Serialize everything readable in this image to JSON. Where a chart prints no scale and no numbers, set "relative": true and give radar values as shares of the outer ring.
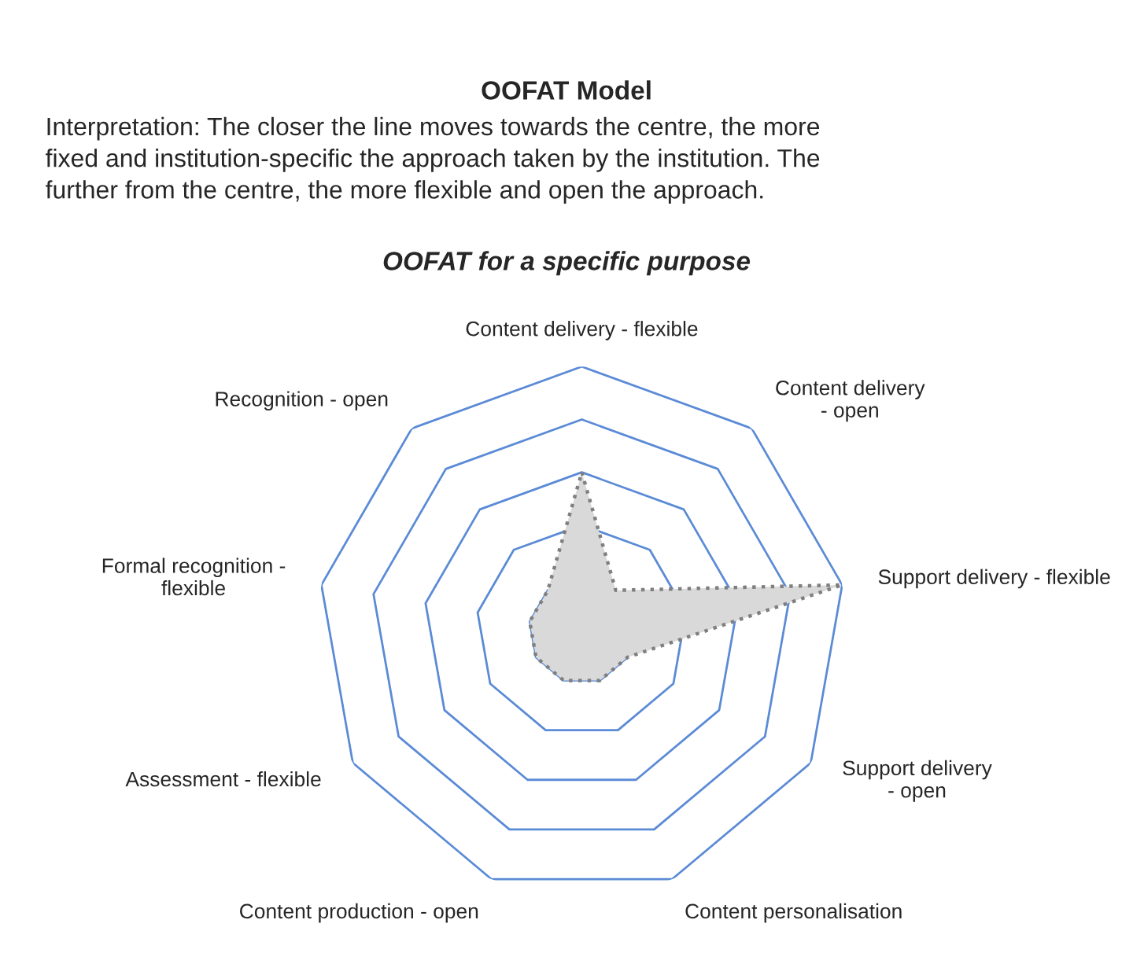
{
  "chart_data": {
    "type": "radar",
    "title": "OOFAT Model",
    "subtitle": "Interpretation: The closer the line moves towards the centre, the more\nfixed and institution-specific the approach taken by the institution. The\nfurther from the centre, the more flexible and open the approach.",
    "annotations": [
      "OOFAT for a specific purpose"
    ],
    "categories": [
      "Content delivery - flexible",
      "Content delivery\n- open",
      "Support delivery - flexible",
      "Support delivery\n- open",
      "Content personalisation",
      "Content production - open",
      "Assessment - flexible",
      "Formal recognition -\nflexible",
      "Recognition - open"
    ],
    "relative": true,
    "series": [
      {
        "color": "#d9d9d9",
        "values": [
          0.6,
          0.2,
          1.0,
          0.2,
          0.2,
          0.2,
          0.2,
          0.2,
          0.2
        ]
      }
    ],
    "grid": true,
    "line_style": "dotted"
  }
}
